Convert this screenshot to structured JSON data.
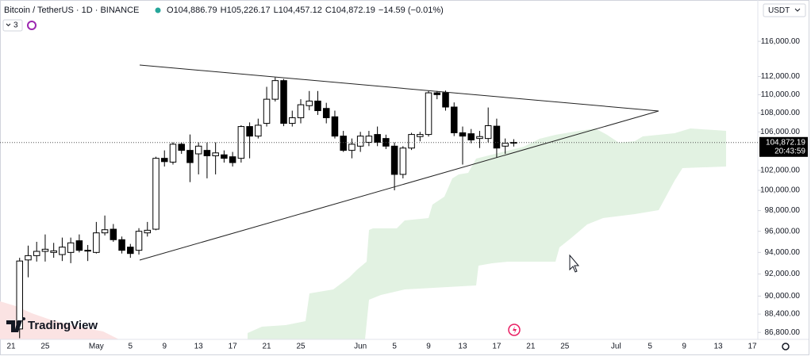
{
  "chart_data": {
    "type": "candlestick",
    "title": "Bitcoin / TetherUS · 1D · BINANCE",
    "legend_ohlc": [
      {
        "key": "O",
        "text": "104,886.79"
      },
      {
        "key": "H",
        "text": "105,226.17"
      },
      {
        "key": "L",
        "text": "104,457.12"
      },
      {
        "key": "C",
        "text": "104,872.19"
      }
    ],
    "change": "−14.59 (−0.01%)",
    "indicator_count": "3",
    "currency": "USDT",
    "brand": "TradingView",
    "categories": [
      "21",
      null,
      null,
      null,
      "25",
      null,
      null,
      null,
      null,
      null,
      "May",
      null,
      null,
      null,
      "5",
      null,
      null,
      null,
      "9",
      null,
      null,
      null,
      "13",
      null,
      null,
      null,
      "17",
      null,
      null,
      null,
      "21",
      null,
      null,
      null,
      "25",
      null,
      null,
      null,
      null,
      null,
      null,
      "Jun",
      null,
      null,
      null,
      "5",
      null,
      null,
      null,
      "9",
      null,
      null,
      null,
      "13",
      null,
      null,
      null,
      "17",
      null,
      null,
      null,
      "21",
      null,
      null,
      null,
      "25",
      null,
      null,
      null,
      null,
      null,
      "Jul",
      null,
      null,
      null,
      "5",
      null,
      null,
      null,
      "9",
      null,
      null,
      null,
      "13",
      null,
      null,
      null,
      "17"
    ],
    "open": [
      null,
      87100,
      93300,
      93700,
      94100,
      94000,
      93800,
      94000,
      95100,
      94150,
      94000,
      95850,
      96200,
      95200,
      94500,
      94200,
      95850,
      96200,
      103240,
      102850,
      104700,
      104060,
      103700,
      104060,
      103500,
      103600,
      103400,
      103240,
      106560,
      105550,
      106900,
      109500,
      111550,
      106900,
      107500,
      108800,
      109300,
      108500,
      107600,
      105550,
      104060,
      104500,
      104900,
      105720,
      105300,
      104500,
      101600,
      104300,
      105500,
      105720,
      110200,
      110200,
      108650,
      105900,
      105800,
      105300,
      105300,
      106600,
      104500,
      104886.79,
      null,
      null,
      null,
      null,
      null,
      null,
      null,
      null,
      null,
      null,
      null,
      null,
      null,
      null,
      null,
      null,
      null,
      null,
      null,
      null,
      null,
      null,
      null,
      null,
      null,
      null,
      null,
      null
    ],
    "high": [
      null,
      93500,
      94640,
      95000,
      95700,
      94900,
      95400,
      95400,
      95700,
      94700,
      96900,
      97520,
      96700,
      95500,
      94800,
      96300,
      96900,
      103400,
      104060,
      104900,
      104890,
      105720,
      104890,
      104890,
      104890,
      104060,
      103900,
      106700,
      107000,
      107400,
      110860,
      111900,
      111730,
      108260,
      109500,
      110400,
      110400,
      109110,
      108260,
      106100,
      105300,
      106000,
      106100,
      106560,
      105700,
      104890,
      104500,
      105900,
      106000,
      110400,
      110400,
      110450,
      109150,
      106560,
      106300,
      106100,
      108600,
      107400,
      105300,
      105226.17,
      null,
      null,
      null,
      null,
      null,
      null,
      null,
      null,
      null,
      null,
      null,
      null,
      null,
      null,
      null,
      null,
      null,
      null,
      null,
      null,
      null,
      null,
      null,
      null,
      null,
      null,
      null,
      null
    ],
    "low": [
      null,
      86300,
      91700,
      93150,
      93150,
      93500,
      93200,
      93000,
      94000,
      93200,
      93900,
      95600,
      95000,
      93900,
      93500,
      93800,
      95500,
      96100,
      102400,
      102600,
      103700,
      100820,
      101600,
      101200,
      101600,
      102800,
      102400,
      102800,
      103240,
      105300,
      106560,
      109250,
      106600,
      106560,
      106900,
      108300,
      107800,
      106900,
      105300,
      103900,
      103240,
      103900,
      104500,
      104500,
      104200,
      100000,
      101200,
      104100,
      105000,
      105500,
      109500,
      108260,
      105550,
      102600,
      104800,
      104300,
      104890,
      103300,
      103700,
      104457.12,
      null,
      null,
      null,
      null,
      null,
      null,
      null,
      null,
      null,
      null,
      null,
      null,
      null,
      null,
      null,
      null,
      null,
      null,
      null,
      null,
      null,
      null,
      null,
      null,
      null,
      null,
      null,
      null
    ],
    "close": [
      null,
      93200,
      93700,
      94100,
      94300,
      94150,
      94500,
      94900,
      94200,
      94200,
      95850,
      96150,
      95200,
      94200,
      93900,
      96000,
      96100,
      103240,
      102900,
      104700,
      104060,
      102800,
      104500,
      103500,
      103800,
      103240,
      102800,
      106560,
      105550,
      106700,
      109500,
      111550,
      106900,
      107500,
      108900,
      109300,
      108260,
      107500,
      105550,
      104060,
      104700,
      105550,
      105550,
      104900,
      104500,
      101600,
      104300,
      105720,
      105720,
      110200,
      110000,
      108650,
      105900,
      105550,
      105150,
      105500,
      106650,
      104300,
      104800,
      104872.19,
      null,
      null,
      null,
      null,
      null,
      null,
      null,
      null,
      null,
      null,
      null,
      null,
      null,
      null,
      null,
      null,
      null,
      null,
      null,
      null,
      null,
      null,
      null,
      null,
      null,
      null,
      null,
      null
    ],
    "up_color": "#ffffff",
    "down_color": "#000000",
    "log_scale": true,
    "grid": false,
    "ylim": [
      86200,
      120400
    ],
    "yticks": [
      {
        "value": 116000,
        "label": "116,000.00"
      },
      {
        "value": 112000,
        "label": "112,000.00"
      },
      {
        "value": 110000,
        "label": "110,000.00"
      },
      {
        "value": 108000,
        "label": "108,000.00"
      },
      {
        "value": 106000,
        "label": "106,000.00"
      },
      {
        "value": 102000,
        "label": "102,000.00"
      },
      {
        "value": 100000,
        "label": "100,000.00"
      },
      {
        "value": 98000,
        "label": "98,000.00"
      },
      {
        "value": 96000,
        "label": "96,000.00"
      },
      {
        "value": 94000,
        "label": "94,000.00"
      },
      {
        "value": 92000,
        "label": "92,000.00"
      },
      {
        "value": 90000,
        "label": "90,000.00"
      },
      {
        "value": 88400,
        "label": "88,400.00"
      },
      {
        "value": 86800,
        "label": "86,800.00"
      }
    ],
    "current_price": {
      "value": 104872.19,
      "label": "104,872.19"
    },
    "countdown": "20:43:59"
  }
}
